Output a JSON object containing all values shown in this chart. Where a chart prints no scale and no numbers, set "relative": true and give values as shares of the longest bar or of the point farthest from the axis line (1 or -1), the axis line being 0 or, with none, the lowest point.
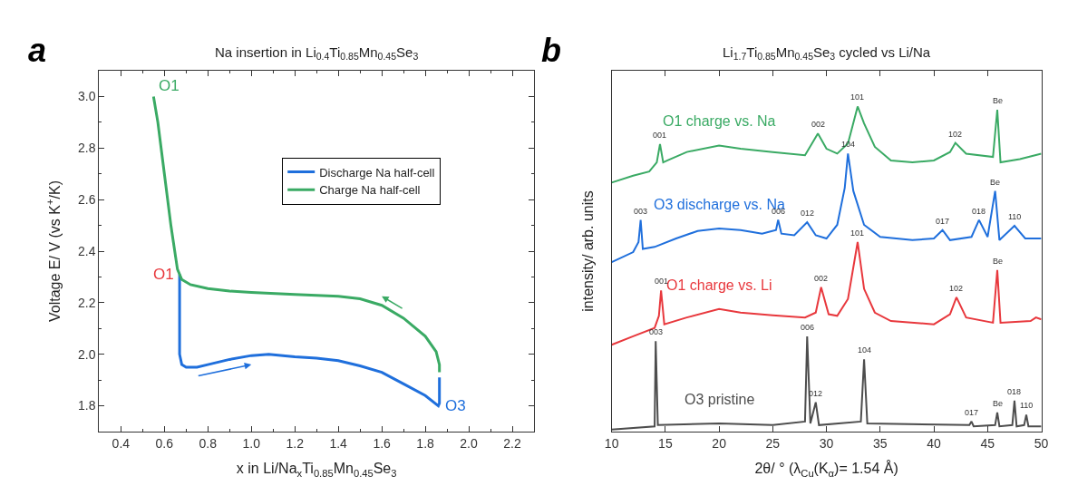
{
  "chart_data": [
    {
      "type": "line",
      "title": "Na insertion in Li$_{0.4}$Ti$_{0.85}$Mn$_{0.45}$Se$_{3}$",
      "xlabel": "x in Li/Na$_{x}$Ti$_{0.85}$Mn$_{0.45}$Se$_{3}$",
      "ylabel": "Voltage E/ V (vs K$^{+}$/K)",
      "xlim": [
        0.3,
        2.3
      ],
      "xticks": [
        0.4,
        0.6,
        0.8,
        {
          "value": 1.0,
          "label": "1.0"
        },
        1.2,
        1.4,
        1.6,
        1.8,
        {
          "value": 2.0,
          "label": "2.0"
        },
        2.2
      ],
      "ylim": [
        1.7,
        3.1
      ],
      "yticks": [
        1.8,
        {
          "value": 2.0,
          "label": "2.0"
        },
        2.2,
        2.4,
        2.6,
        2.8,
        {
          "value": 3.0,
          "label": "3.0"
        }
      ],
      "grid": false,
      "legend": "top right",
      "marker": "none",
      "line_style": "solid",
      "series": [
        {
          "name": "Discharge Na half-cell",
          "color": "#1f6fdc",
          "x": [
            0.67,
            0.67,
            0.68,
            0.7,
            0.75,
            0.8,
            0.9,
            1.0,
            1.08,
            1.2,
            1.3,
            1.4,
            1.5,
            1.6,
            1.7,
            1.8,
            1.86,
            1.865,
            1.865
          ],
          "values": [
            2.31,
            2.0,
            1.96,
            1.95,
            1.95,
            1.96,
            1.98,
            1.995,
            2.0,
            1.99,
            1.985,
            1.975,
            1.955,
            1.93,
            1.885,
            1.84,
            1.8,
            1.81,
            1.91
          ]
        },
        {
          "name": "Charge Na half-cell",
          "color": "#3aaa64",
          "x": [
            1.865,
            1.865,
            1.85,
            1.8,
            1.7,
            1.6,
            1.5,
            1.4,
            1.2,
            1.0,
            0.9,
            0.8,
            0.72,
            0.68,
            0.66,
            0.63,
            0.6,
            0.57,
            0.55
          ],
          "values": [
            1.93,
            1.96,
            2.01,
            2.07,
            2.14,
            2.19,
            2.215,
            2.225,
            2.232,
            2.24,
            2.245,
            2.255,
            2.27,
            2.29,
            2.33,
            2.5,
            2.7,
            2.9,
            3.0
          ]
        }
      ],
      "annotations": [
        "a",
        {
          "text": "O1",
          "x": 0.55,
          "y": 3.0
        },
        {
          "text": "O1",
          "x": 0.67,
          "y": 2.31
        },
        {
          "text": "O3",
          "x": 1.865,
          "y": 1.8
        }
      ]
    },
    {
      "type": "line",
      "relative": true,
      "title": "Li$_{1.7}$Ti$_{0.85}$Mn$_{0.45}$Se$_{3}$ cycled vs Li/Na",
      "xlabel": "2θ/ ° (λ$_{Cu}$(K$_{α}$)= 1.54 Å)",
      "ylabel": "intensity/ arb. units",
      "xlim": [
        10,
        50
      ],
      "xticks": [
        10,
        15,
        20,
        25,
        30,
        35,
        40,
        45,
        50
      ],
      "grid": false,
      "legend": false,
      "marker": "none",
      "line_style": "solid",
      "series": [
        {
          "name": "O1 charge vs. Na",
          "color": "#3aaa64",
          "x": [
            10,
            12,
            13.5,
            14.2,
            14.5,
            14.8,
            15.2,
            17,
            20,
            22,
            25,
            28,
            29.2,
            30,
            31,
            32,
            32.9,
            33.5,
            34.5,
            36,
            38,
            40,
            41.5,
            42,
            43,
            45.5,
            45.9,
            46.2,
            48,
            50
          ],
          "values": [
            0.766,
            0.787,
            0.8,
            0.828,
            0.884,
            0.828,
            0.834,
            0.86,
            0.88,
            0.87,
            0.86,
            0.85,
            0.917,
            0.87,
            0.855,
            0.886,
            1.0,
            0.948,
            0.876,
            0.834,
            0.828,
            0.834,
            0.86,
            0.888,
            0.855,
            0.845,
            0.99,
            0.828,
            0.838,
            0.855
          ]
        },
        {
          "name": "O3 discharge vs. Na",
          "color": "#1f6fdc",
          "x": [
            10,
            12,
            12.5,
            12.7,
            12.9,
            14,
            16,
            18,
            20,
            22,
            24,
            25.3,
            25.5,
            25.8,
            27,
            28.2,
            29,
            30,
            31,
            31.7,
            32,
            32.5,
            33.5,
            35,
            38,
            40,
            40.8,
            41.5,
            43.5,
            44.2,
            45,
            45.7,
            46.1,
            47.5,
            48.5,
            50
          ],
          "values": [
            0.521,
            0.552,
            0.583,
            0.651,
            0.562,
            0.568,
            0.594,
            0.617,
            0.625,
            0.62,
            0.609,
            0.62,
            0.651,
            0.609,
            0.604,
            0.644,
            0.604,
            0.594,
            0.636,
            0.75,
            0.855,
            0.74,
            0.636,
            0.599,
            0.589,
            0.594,
            0.62,
            0.589,
            0.599,
            0.651,
            0.599,
            0.74,
            0.589,
            0.633,
            0.594,
            0.594
          ]
        },
        {
          "name": "O1 charge vs. Li",
          "color": "#e8383d",
          "x": [
            10,
            12,
            14,
            14.4,
            14.6,
            14.9,
            17,
            20,
            22,
            25,
            28,
            29,
            29.5,
            30.2,
            31,
            32,
            32.9,
            33.5,
            34.5,
            36,
            40,
            41.5,
            42.1,
            43,
            45.5,
            45.9,
            46.2,
            49,
            49.5,
            50
          ],
          "values": [
            0.267,
            0.293,
            0.319,
            0.356,
            0.434,
            0.33,
            0.351,
            0.377,
            0.366,
            0.358,
            0.351,
            0.366,
            0.444,
            0.361,
            0.356,
            0.408,
            0.583,
            0.439,
            0.366,
            0.34,
            0.33,
            0.361,
            0.413,
            0.351,
            0.335,
            0.497,
            0.335,
            0.34,
            0.351,
            0.345
          ]
        },
        {
          "name": "O3 pristine",
          "color": "#4d4d4d",
          "x": [
            10,
            14,
            14.1,
            14.3,
            20,
            25,
            28.0,
            28.2,
            28.5,
            29.0,
            29.3,
            33.2,
            33.5,
            33.8,
            43.3,
            43.5,
            43.7,
            45.7,
            45.9,
            46.1,
            47.3,
            47.5,
            47.7,
            48.4,
            48.6,
            48.8,
            50
          ],
          "values": [
            0.006,
            0.016,
            0.278,
            0.02,
            0.025,
            0.02,
            0.031,
            0.293,
            0.025,
            0.09,
            0.02,
            0.031,
            0.222,
            0.025,
            0.02,
            0.031,
            0.016,
            0.02,
            0.059,
            0.016,
            0.02,
            0.095,
            0.016,
            0.02,
            0.052,
            0.016,
            0.016
          ]
        }
      ],
      "annotations": [
        "b",
        {
          "text": "001",
          "x": 14.5,
          "y": 0.884
        },
        {
          "text": "002",
          "x": 29.2,
          "y": 0.917
        },
        {
          "text": "101",
          "x": 32.9,
          "y": 1.0
        },
        {
          "text": "102",
          "x": 42,
          "y": 0.888
        },
        {
          "text": "Be",
          "x": 45.9,
          "y": 0.99
        },
        {
          "text": "003",
          "x": 12.7,
          "y": 0.651
        },
        {
          "text": "006",
          "x": 25.5,
          "y": 0.651
        },
        {
          "text": "012",
          "x": 28.2,
          "y": 0.644
        },
        {
          "text": "104",
          "x": 32,
          "y": 0.855
        },
        {
          "text": "017",
          "x": 40.8,
          "y": 0.62
        },
        {
          "text": "018",
          "x": 44.2,
          "y": 0.651
        },
        {
          "text": "Be",
          "x": 45.7,
          "y": 0.74
        },
        {
          "text": "110",
          "x": 47.5,
          "y": 0.633
        },
        {
          "text": "001",
          "x": 14.6,
          "y": 0.434
        },
        {
          "text": "002",
          "x": 29.5,
          "y": 0.444
        },
        {
          "text": "101",
          "x": 32.9,
          "y": 0.583
        },
        {
          "text": "102",
          "x": 42.1,
          "y": 0.413
        },
        {
          "text": "Be",
          "x": 45.9,
          "y": 0.497
        },
        {
          "text": "003",
          "x": 14.1,
          "y": 0.278
        },
        {
          "text": "006",
          "x": 28.2,
          "y": 0.293
        },
        {
          "text": "012",
          "x": 29.0,
          "y": 0.09
        },
        {
          "text": "104",
          "x": 33.5,
          "y": 0.222
        },
        {
          "text": "017",
          "x": 43.5,
          "y": 0.031
        },
        {
          "text": "Be",
          "x": 45.9,
          "y": 0.059
        },
        {
          "text": "018",
          "x": 47.5,
          "y": 0.095
        },
        {
          "text": "110",
          "x": 48.6,
          "y": 0.052
        }
      ]
    }
  ]
}
